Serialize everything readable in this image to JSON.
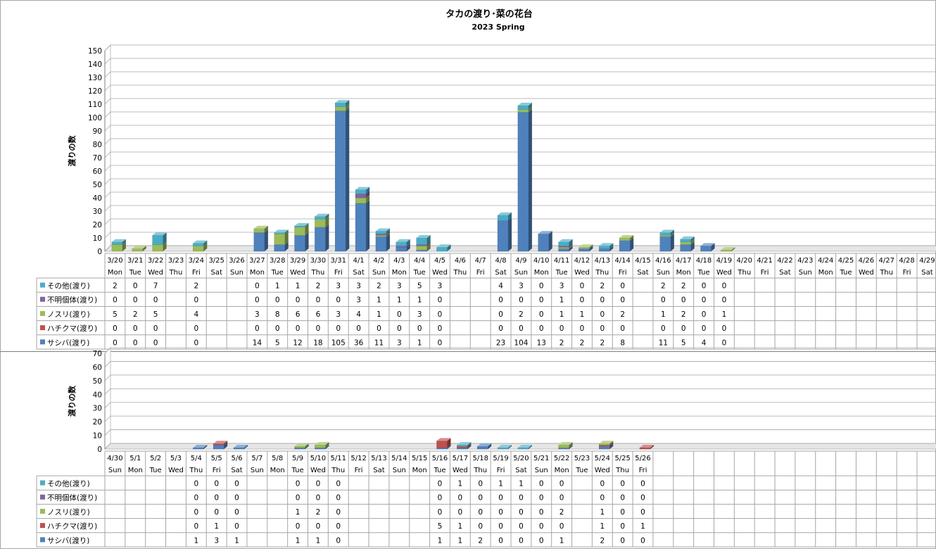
{
  "colors": {
    "sashiba": "#4f81bd",
    "hachikuma": "#c0504d",
    "nosuri": "#9bbb59",
    "fumei": "#8064a2",
    "sonota": "#4bacc6"
  },
  "chart_data": [
    {
      "type": "bar",
      "stacked": true,
      "title": "タカの渡り･菜の花台",
      "subtitle": "2023 Spring",
      "ylabel": "渡りの数",
      "ylim": [
        0,
        150
      ],
      "ytick_step": 10,
      "grid": true,
      "legend": "table-left",
      "categories": [
        "3/20",
        "3/21",
        "3/22",
        "3/23",
        "3/24",
        "3/25",
        "3/26",
        "3/27",
        "3/28",
        "3/29",
        "3/30",
        "3/31",
        "4/1",
        "4/2",
        "4/3",
        "4/4",
        "4/5",
        "4/6",
        "4/7",
        "4/8",
        "4/9",
        "4/10",
        "4/11",
        "4/12",
        "4/13",
        "4/14",
        "4/15",
        "4/16",
        "4/17",
        "4/18",
        "4/19",
        "4/20",
        "4/21",
        "4/22",
        "4/23",
        "4/24",
        "4/25",
        "4/26",
        "4/27",
        "4/28",
        "4/29"
      ],
      "weekdays": [
        "Mon",
        "Tue",
        "Wed",
        "Thu",
        "Fri",
        "Sat",
        "Sun",
        "Mon",
        "Tue",
        "Wed",
        "Thu",
        "Fri",
        "Sat",
        "Sun",
        "Mon",
        "Tue",
        "Wed",
        "Thu",
        "Fri",
        "Sat",
        "Sun",
        "Mon",
        "Tue",
        "Wed",
        "Thu",
        "Fri",
        "Sat",
        "Sun",
        "Mon",
        "Tue",
        "Wed",
        "Thu",
        "Fri",
        "Sat",
        "Sun",
        "Mon",
        "Tue",
        "Wed",
        "Thu",
        "Fri",
        "Sat"
      ],
      "series": [
        {
          "name": "その他(渡り)",
          "key": "sonota",
          "values": [
            2,
            0,
            7,
            null,
            2,
            null,
            null,
            0,
            1,
            1,
            2,
            3,
            3,
            2,
            3,
            5,
            3,
            null,
            null,
            4,
            3,
            0,
            3,
            0,
            2,
            0,
            null,
            2,
            2,
            0,
            0,
            null,
            null,
            null,
            null,
            null,
            null,
            null,
            null,
            null,
            null
          ]
        },
        {
          "name": "不明個体(渡り)",
          "key": "fumei",
          "values": [
            0,
            0,
            0,
            null,
            0,
            null,
            null,
            0,
            0,
            0,
            0,
            0,
            3,
            1,
            1,
            1,
            0,
            null,
            null,
            0,
            0,
            0,
            1,
            0,
            0,
            0,
            null,
            0,
            0,
            0,
            0,
            null,
            null,
            null,
            null,
            null,
            null,
            null,
            null,
            null,
            null
          ]
        },
        {
          "name": "ノスリ(渡り)",
          "key": "nosuri",
          "values": [
            5,
            2,
            5,
            null,
            4,
            null,
            null,
            3,
            8,
            6,
            6,
            3,
            4,
            1,
            0,
            3,
            0,
            null,
            null,
            0,
            2,
            0,
            1,
            1,
            0,
            2,
            null,
            1,
            2,
            0,
            1,
            null,
            null,
            null,
            null,
            null,
            null,
            null,
            null,
            null,
            null
          ]
        },
        {
          "name": "ハチクマ(渡り)",
          "key": "hachikuma",
          "values": [
            0,
            0,
            0,
            null,
            0,
            null,
            null,
            0,
            0,
            0,
            0,
            0,
            0,
            0,
            0,
            0,
            0,
            null,
            null,
            0,
            0,
            0,
            0,
            0,
            0,
            0,
            null,
            0,
            0,
            0,
            0,
            null,
            null,
            null,
            null,
            null,
            null,
            null,
            null,
            null,
            null
          ]
        },
        {
          "name": "サシバ(渡り)",
          "key": "sashiba",
          "values": [
            0,
            0,
            0,
            null,
            0,
            null,
            null,
            14,
            5,
            12,
            18,
            105,
            36,
            11,
            3,
            1,
            0,
            null,
            null,
            23,
            104,
            13,
            2,
            2,
            2,
            8,
            null,
            11,
            5,
            4,
            0,
            null,
            null,
            null,
            null,
            null,
            null,
            null,
            null,
            null,
            null
          ]
        }
      ]
    },
    {
      "type": "bar",
      "stacked": true,
      "title": "",
      "ylabel": "渡りの数",
      "ylim": [
        0,
        70
      ],
      "ytick_step": 10,
      "grid": true,
      "legend": "table-left",
      "categories": [
        "4/30",
        "5/1",
        "5/2",
        "5/3",
        "5/4",
        "5/5",
        "5/6",
        "5/7",
        "5/8",
        "5/9",
        "5/10",
        "5/11",
        "5/12",
        "5/13",
        "5/14",
        "5/15",
        "5/16",
        "5/17",
        "5/18",
        "5/19",
        "5/20",
        "5/21",
        "5/22",
        "5/23",
        "5/24",
        "5/25",
        "5/26"
      ],
      "weekdays": [
        "Sun",
        "Mon",
        "Tue",
        "Wed",
        "Thu",
        "Fri",
        "Sat",
        "Sun",
        "Mon",
        "Tue",
        "Wed",
        "Thu",
        "Fri",
        "Sat",
        "Sun",
        "Mon",
        "Tue",
        "Wed",
        "Thu",
        "Fri",
        "Sat",
        "Sun",
        "Mon",
        "Tue",
        "Wed",
        "Thu",
        "Fri"
      ],
      "series": [
        {
          "name": "その他(渡り)",
          "key": "sonota",
          "values": [
            null,
            null,
            null,
            null,
            0,
            0,
            0,
            null,
            null,
            0,
            0,
            0,
            null,
            null,
            null,
            null,
            0,
            1,
            0,
            1,
            1,
            0,
            0,
            null,
            0,
            0,
            0
          ]
        },
        {
          "name": "不明個体(渡り)",
          "key": "fumei",
          "values": [
            null,
            null,
            null,
            null,
            0,
            0,
            0,
            null,
            null,
            0,
            0,
            0,
            null,
            null,
            null,
            null,
            0,
            0,
            0,
            0,
            0,
            0,
            0,
            null,
            0,
            0,
            0
          ]
        },
        {
          "name": "ノスリ(渡り)",
          "key": "nosuri",
          "values": [
            null,
            null,
            null,
            null,
            0,
            0,
            0,
            null,
            null,
            1,
            2,
            0,
            null,
            null,
            null,
            null,
            0,
            0,
            0,
            0,
            0,
            0,
            2,
            null,
            1,
            0,
            0
          ]
        },
        {
          "name": "ハチクマ(渡り)",
          "key": "hachikuma",
          "values": [
            null,
            null,
            null,
            null,
            0,
            1,
            0,
            null,
            null,
            0,
            0,
            0,
            null,
            null,
            null,
            null,
            5,
            1,
            0,
            0,
            0,
            0,
            0,
            null,
            1,
            0,
            1
          ]
        },
        {
          "name": "サシバ(渡り)",
          "key": "sashiba",
          "values": [
            null,
            null,
            null,
            null,
            1,
            3,
            1,
            null,
            null,
            1,
            1,
            0,
            null,
            null,
            null,
            null,
            1,
            1,
            2,
            0,
            0,
            0,
            1,
            null,
            2,
            0,
            0
          ]
        }
      ]
    }
  ]
}
